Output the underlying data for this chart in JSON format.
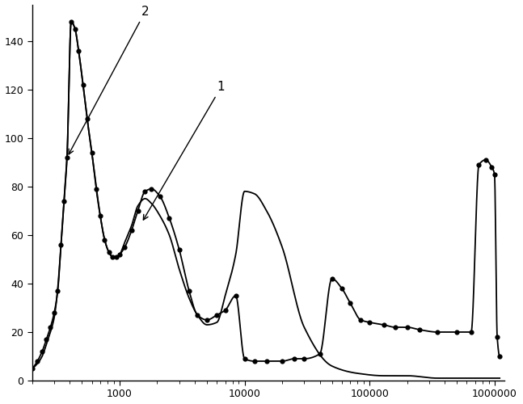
{
  "background_color": "#ffffff",
  "line1_color": "#000000",
  "line2_color": "#000000",
  "marker_color": "#000000",
  "xlim": [
    200,
    1200000
  ],
  "ylim": [
    0,
    155
  ],
  "yticks": [
    0,
    20,
    40,
    60,
    80,
    100,
    120,
    140
  ],
  "label1": "1",
  "label2": "2",
  "curve1_x": [
    200,
    220,
    240,
    260,
    280,
    300,
    320,
    340,
    360,
    380,
    410,
    440,
    470,
    510,
    550,
    600,
    650,
    700,
    760,
    820,
    880,
    940,
    1000,
    1100,
    1250,
    1400,
    1600,
    1800,
    2100,
    2500,
    3000,
    3600,
    4200,
    5000,
    6000,
    7000,
    8500,
    10000,
    12000,
    15000,
    20000,
    30000,
    50000,
    80000,
    130000,
    200000,
    350000,
    600000,
    900000,
    1100000
  ],
  "curve1_y": [
    5,
    7,
    10,
    15,
    20,
    26,
    38,
    56,
    75,
    93,
    148,
    145,
    136,
    122,
    108,
    94,
    80,
    68,
    58,
    53,
    51,
    51,
    52,
    57,
    64,
    72,
    75,
    73,
    68,
    60,
    46,
    34,
    27,
    23,
    24,
    35,
    52,
    78,
    77,
    70,
    55,
    22,
    6,
    3,
    2,
    2,
    1,
    1,
    1,
    1
  ],
  "curve2_x": [
    200,
    220,
    240,
    260,
    280,
    300,
    320,
    340,
    360,
    380,
    410,
    440,
    470,
    510,
    550,
    600,
    650,
    700,
    760,
    820,
    880,
    940,
    1000,
    1100,
    1250,
    1400,
    1600,
    1800,
    2100,
    2500,
    3000,
    3600,
    4200,
    5000,
    6000,
    7000,
    8500,
    10000,
    12000,
    15000,
    20000,
    25000,
    30000,
    40000,
    50000,
    60000,
    70000,
    85000,
    100000,
    130000,
    160000,
    200000,
    250000,
    350000,
    500000,
    650000,
    750000,
    850000,
    950000,
    1000000,
    1050000,
    1100000
  ],
  "curve2_y": [
    5,
    8,
    12,
    17,
    22,
    28,
    37,
    56,
    74,
    92,
    148,
    145,
    136,
    122,
    108,
    94,
    79,
    68,
    58,
    53,
    51,
    51,
    52,
    55,
    62,
    70,
    78,
    79,
    76,
    67,
    54,
    37,
    27,
    25,
    27,
    29,
    35,
    9,
    8,
    8,
    8,
    9,
    9,
    11,
    42,
    38,
    32,
    25,
    24,
    23,
    22,
    22,
    21,
    20,
    20,
    20,
    89,
    91,
    88,
    85,
    18,
    10
  ]
}
